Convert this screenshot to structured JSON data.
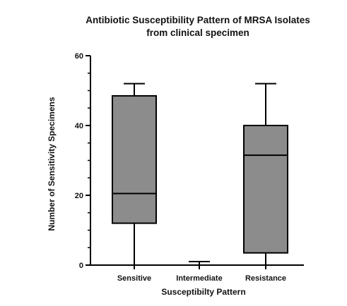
{
  "chart_data": {
    "type": "box",
    "title_line1": "Antibiotic Susceptibility Pattern of MRSA Isolates",
    "title_line2": "from clinical specimen",
    "xlabel": "Susceptibilty Pattern",
    "ylabel": "Number of Sensitivity Specimens",
    "ylim": [
      0,
      60
    ],
    "yticks": [
      0,
      20,
      40,
      60
    ],
    "grid": false,
    "categories": [
      "Sensitive",
      "Intermediate",
      "Resistance"
    ],
    "boxes": [
      {
        "category": "Sensitive",
        "min": 0,
        "q1": 12,
        "median": 20.5,
        "q3": 48.5,
        "max": 52
      },
      {
        "category": "Intermediate",
        "min": 0,
        "q1": 0,
        "median": 0,
        "q3": 0,
        "max": 1
      },
      {
        "category": "Resistance",
        "min": 0,
        "q1": 3.5,
        "median": 31.5,
        "q3": 40,
        "max": 52
      }
    ],
    "colors": {
      "box_fill": "#8c8c8c",
      "stroke": "#000000"
    }
  }
}
